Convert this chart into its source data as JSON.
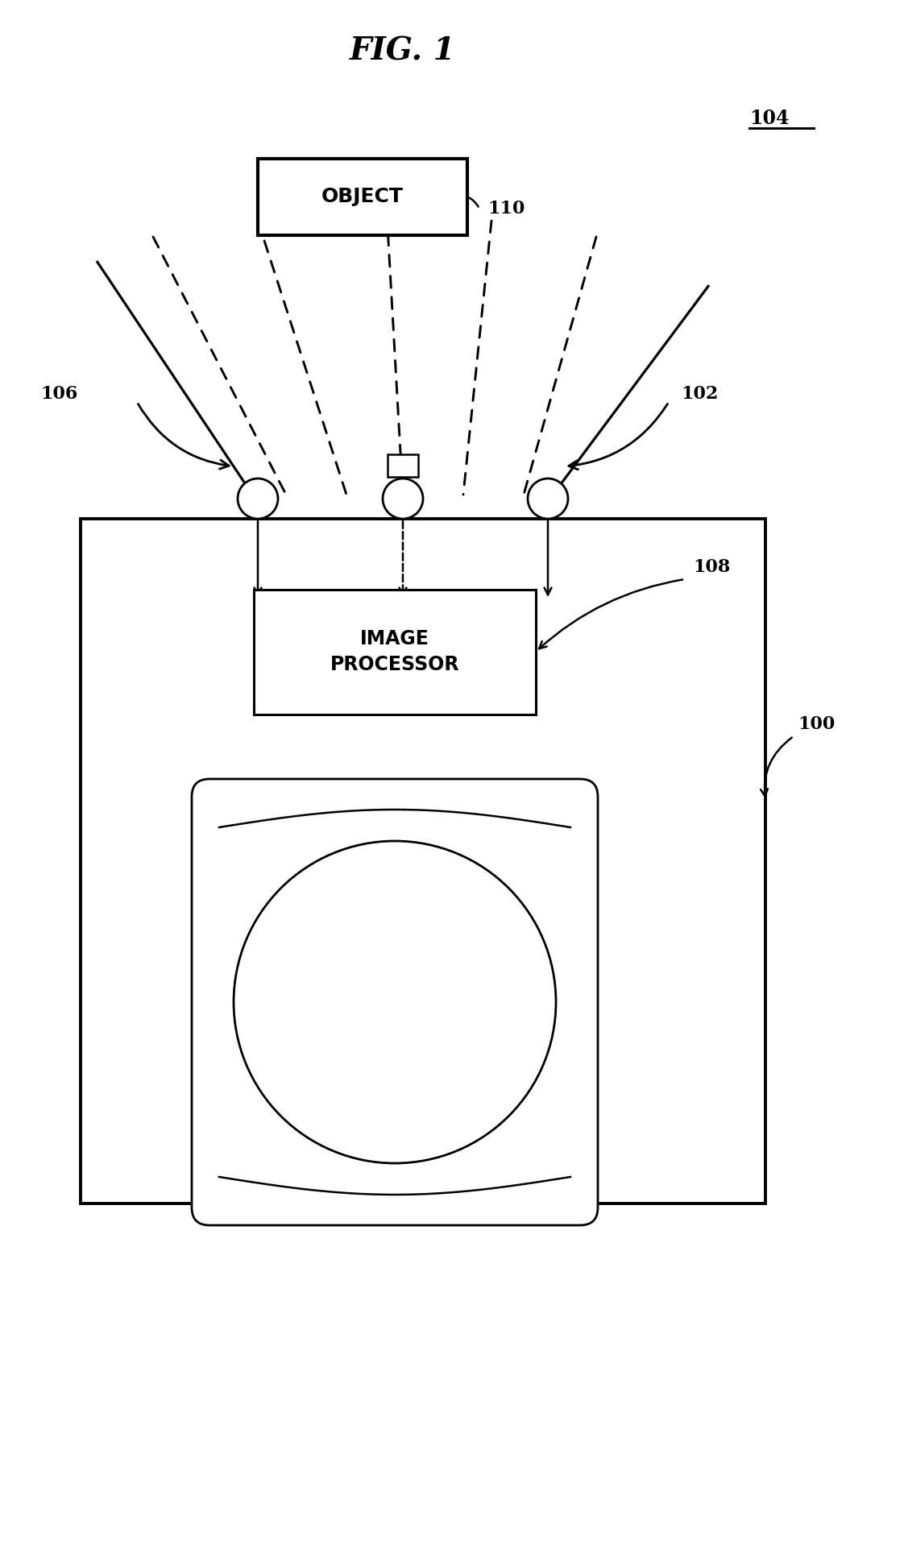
{
  "title": "FIG. 1",
  "bg_color": "#ffffff",
  "line_color": "#000000",
  "label_104": "104",
  "label_110": "110",
  "label_106": "106",
  "label_102": "102",
  "label_108": "108",
  "label_100": "100",
  "text_object": "OBJECT",
  "text_image_processor": "IMAGE\nPROCESSOR"
}
